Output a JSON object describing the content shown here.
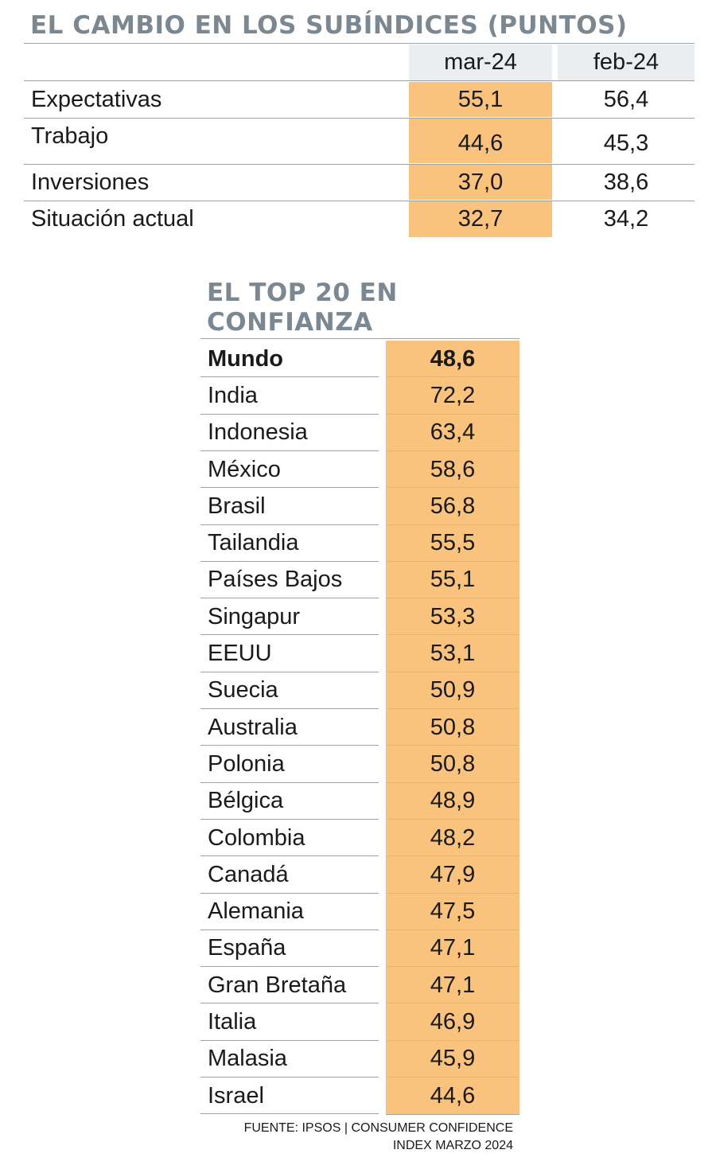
{
  "subindices": {
    "title": "EL CAMBIO EN LOS SUBÍNDICES (PUNTOS)",
    "columns": [
      "mar-24",
      "feb-24"
    ],
    "rows": [
      {
        "label": "Expectativas",
        "mar": "55,1",
        "feb": "56,4"
      },
      {
        "label": "Trabajo",
        "mar": "44,6",
        "feb": "45,3"
      },
      {
        "label": "Inversiones",
        "mar": "37,0",
        "feb": "38,6"
      },
      {
        "label": "Situación actual",
        "mar": "32,7",
        "feb": "34,2"
      }
    ]
  },
  "top20": {
    "title": "EL TOP 20 EN CONFIANZA",
    "rows": [
      {
        "label": "Mundo",
        "value": "48,6"
      },
      {
        "label": "India",
        "value": "72,2"
      },
      {
        "label": "Indonesia",
        "value": "63,4"
      },
      {
        "label": "México",
        "value": "58,6"
      },
      {
        "label": "Brasil",
        "value": "56,8"
      },
      {
        "label": "Tailandia",
        "value": "55,5"
      },
      {
        "label": "Países Bajos",
        "value": "55,1"
      },
      {
        "label": "Singapur",
        "value": "53,3"
      },
      {
        "label": "EEUU",
        "value": "53,1"
      },
      {
        "label": "Suecia",
        "value": "50,9"
      },
      {
        "label": "Australia",
        "value": "50,8"
      },
      {
        "label": "Polonia",
        "value": "50,8"
      },
      {
        "label": "Bélgica",
        "value": "48,9"
      },
      {
        "label": "Colombia",
        "value": "48,2"
      },
      {
        "label": "Canadá",
        "value": "47,9"
      },
      {
        "label": "Alemania",
        "value": "47,5"
      },
      {
        "label": "España",
        "value": "47,1"
      },
      {
        "label": "Gran Bretaña",
        "value": "47,1"
      },
      {
        "label": "Italia",
        "value": "46,9"
      },
      {
        "label": "Malasia",
        "value": "45,9"
      },
      {
        "label": "Israel",
        "value": "44,6"
      }
    ]
  },
  "source": {
    "line1": "FUENTE: IPSOS | CONSUMER CONFIDENCE",
    "line2": "INDEX MARZO 2024"
  },
  "colors": {
    "highlight": "#f9c27d",
    "title": "#7b8791",
    "header_bg": "#eaeef1"
  },
  "chart_data": [
    {
      "type": "table",
      "title": "EL CAMBIO EN LOS SUBÍNDICES (PUNTOS)",
      "columns": [
        "mar-24",
        "feb-24"
      ],
      "categories": [
        "Expectativas",
        "Trabajo",
        "Inversiones",
        "Situación actual"
      ],
      "series": [
        {
          "name": "mar-24",
          "values": [
            55.1,
            44.6,
            37.0,
            32.7
          ]
        },
        {
          "name": "feb-24",
          "values": [
            56.4,
            45.3,
            38.6,
            34.2
          ]
        }
      ]
    },
    {
      "type": "table",
      "title": "EL TOP 20 EN CONFIANZA",
      "categories": [
        "Mundo",
        "India",
        "Indonesia",
        "México",
        "Brasil",
        "Tailandia",
        "Países Bajos",
        "Singapur",
        "EEUU",
        "Suecia",
        "Australia",
        "Polonia",
        "Bélgica",
        "Colombia",
        "Canadá",
        "Alemania",
        "España",
        "Gran Bretaña",
        "Italia",
        "Malasia",
        "Israel"
      ],
      "values": [
        48.6,
        72.2,
        63.4,
        58.6,
        56.8,
        55.5,
        55.1,
        53.3,
        53.1,
        50.9,
        50.8,
        50.8,
        48.9,
        48.2,
        47.9,
        47.5,
        47.1,
        47.1,
        46.9,
        45.9,
        44.6
      ]
    }
  ]
}
